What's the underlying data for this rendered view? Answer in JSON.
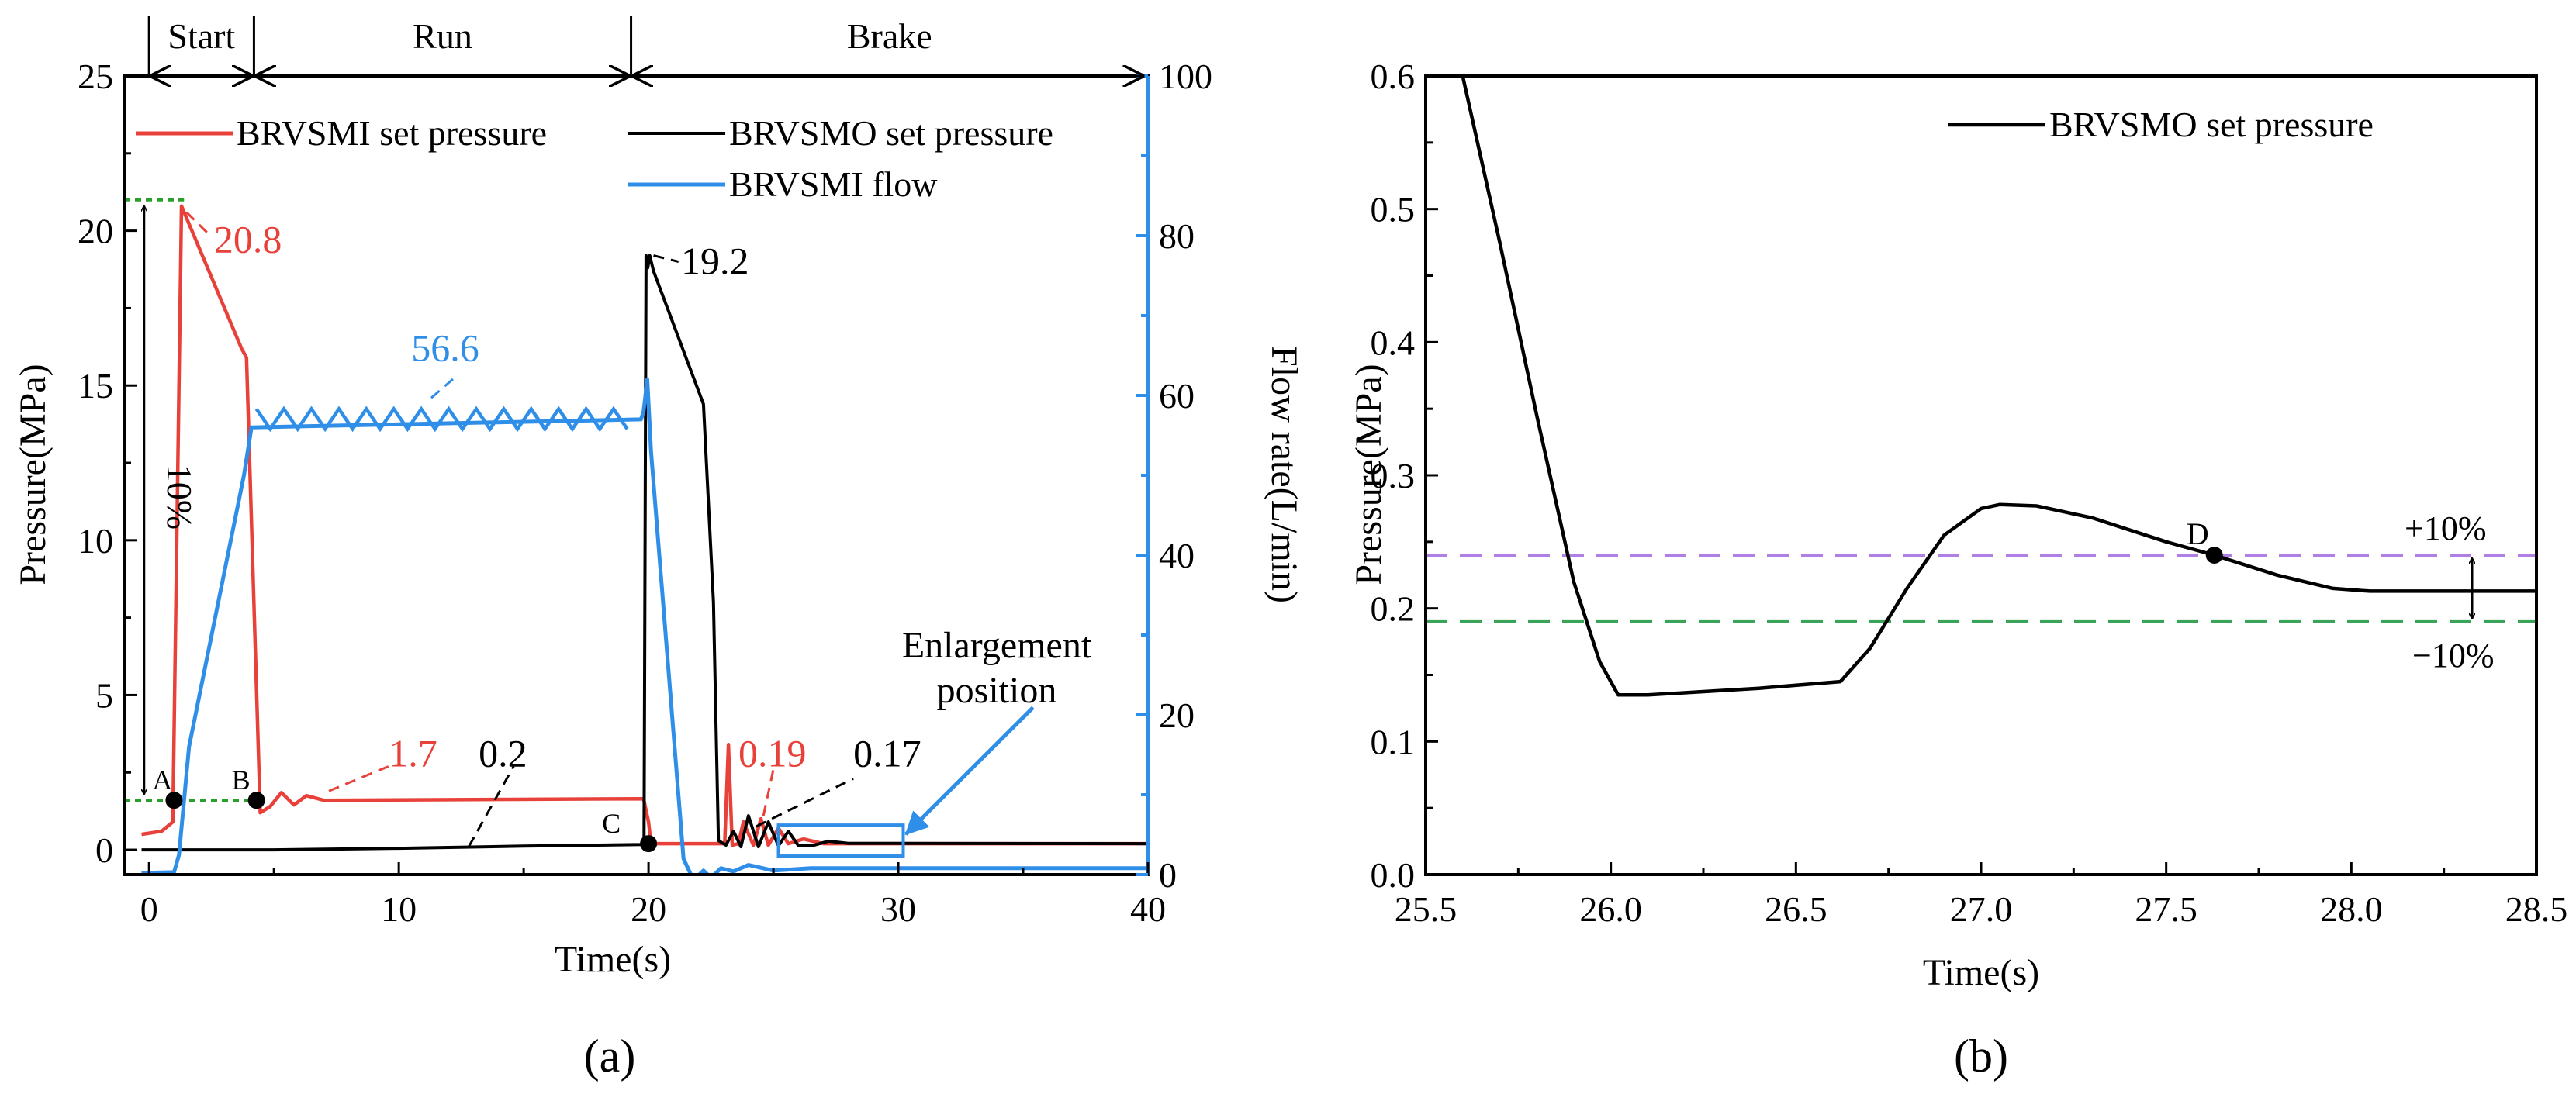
{
  "chart_data": [
    {
      "panel_label": "(a)",
      "type": "line",
      "title": "",
      "xlabel": "Time(s)",
      "ylabel": "Pressure(MPa)",
      "ylabel_right": "Flow rate(L/min)",
      "xlim": [
        -1,
        40
      ],
      "ylim": [
        -0.8,
        25
      ],
      "ylim_right": [
        0,
        100
      ],
      "x_ticks": [
        0,
        10,
        20,
        30,
        40
      ],
      "y_ticks": [
        0,
        5,
        10,
        15,
        20,
        25
      ],
      "y_ticks_right": [
        0,
        20,
        40,
        60,
        80,
        100
      ],
      "colors": {
        "red": "#e8413a",
        "black": "#000000",
        "blue": "#2f8fe8",
        "green": "#2aa02a"
      },
      "phases": [
        {
          "label": "Start",
          "from": 0,
          "to": 4.2
        },
        {
          "label": "Run",
          "from": 4.2,
          "to": 19.3
        },
        {
          "label": "Brake",
          "from": 19.3,
          "to": 40
        }
      ],
      "legend": [
        "BRVSMI set pressure",
        "BRVSMO set pressure",
        "BRVSMI flow"
      ],
      "series": [
        {
          "name": "BRVSMI set pressure",
          "axis": "left",
          "color": "#e8413a",
          "x": [
            -0.3,
            0.5,
            0.95,
            1.3,
            3.7,
            3.9,
            4.45,
            4.85,
            5.3,
            5.8,
            6.3,
            7,
            19.8,
            20,
            20.1,
            22.7,
            23.05,
            23.2,
            23.35,
            23.6,
            23.8,
            24.2,
            24.5,
            24.8,
            25.2,
            25.6,
            26.2,
            27,
            40
          ],
          "y": [
            0.5,
            0.6,
            0.9,
            20.8,
            16.2,
            15.9,
            1.2,
            1.4,
            1.85,
            1.45,
            1.75,
            1.6,
            1.65,
            0.9,
            0.2,
            0.2,
            0.2,
            3.4,
            0.15,
            0.2,
            0.9,
            0.15,
            1.0,
            0.15,
            0.7,
            0.2,
            0.35,
            0.2,
            0.2
          ]
        },
        {
          "name": "BRVSMO set pressure",
          "axis": "left",
          "color": "#000000",
          "x": [
            -0.3,
            5,
            10,
            15,
            19.7,
            19.82,
            19.9,
            19.97,
            20.05,
            20.2,
            22.2,
            22.6,
            22.8,
            23.1,
            23.4,
            23.7,
            24.0,
            24.4,
            24.8,
            25.2,
            25.6,
            26,
            26.6,
            27.2,
            28,
            40
          ],
          "y": [
            0,
            0,
            0.05,
            0.12,
            0.17,
            0.3,
            19.2,
            18.8,
            19.2,
            18.7,
            14.4,
            8.0,
            0.3,
            0.15,
            0.6,
            0.1,
            1.1,
            0.1,
            0.9,
            0.13,
            0.6,
            0.135,
            0.145,
            0.28,
            0.21,
            0.2
          ]
        },
        {
          "name": "BRVSMI flow",
          "axis": "right",
          "color": "#2f8fe8",
          "x": [
            -0.3,
            1,
            1.2,
            1.6,
            3.8,
            4.1,
            19.7,
            19.8,
            19.95,
            20.1,
            21.4,
            21.8,
            22.2,
            22.5,
            22.9,
            23.4,
            24.0,
            25.0,
            26.5,
            40
          ],
          "y": [
            0.2,
            0.3,
            2.5,
            16,
            50,
            56,
            57,
            58,
            62,
            53,
            2,
            -0.7,
            0.5,
            -0.4,
            0.8,
            0.4,
            1.2,
            0.5,
            0.8,
            0.8
          ]
        }
      ],
      "annotations": {
        "peak_red": "20.8",
        "peak_black": "19.2",
        "flow_plateau": "56.6",
        "red_steady": "1.7",
        "black_steady": "0.2",
        "red_brake": "0.19",
        "black_brake": "0.17",
        "percent_label": "10%",
        "enlargement": [
          "Enlargement",
          "position"
        ],
        "points": [
          {
            "label": "A",
            "x": 1.0,
            "y": 1.6
          },
          {
            "label": "B",
            "x": 4.3,
            "y": 1.6
          },
          {
            "label": "C",
            "x": 20.0,
            "y": 0.2
          }
        ],
        "enlargement_box": {
          "x0": 25.2,
          "x1": 30.2,
          "y0": -0.2,
          "y1": 0.8
        }
      }
    },
    {
      "panel_label": "(b)",
      "type": "line",
      "title": "",
      "xlabel": "Time(s)",
      "ylabel": "Pressure(MPa)",
      "xlim": [
        25.5,
        28.5
      ],
      "ylim": [
        0.0,
        0.6
      ],
      "x_ticks": [
        "25.5",
        "26.0",
        "26.5",
        "27.0",
        "27.5",
        "28.0",
        "28.5"
      ],
      "y_ticks": [
        "0.0",
        "0.1",
        "0.2",
        "0.3",
        "0.4",
        "0.5",
        "0.6"
      ],
      "legend": [
        "BRVSMO set pressure"
      ],
      "series": [
        {
          "name": "BRVSMO set pressure",
          "color": "#000000",
          "x": [
            25.6,
            25.7,
            25.8,
            25.9,
            25.97,
            26.02,
            26.1,
            26.4,
            26.62,
            26.7,
            26.8,
            26.9,
            27.0,
            27.05,
            27.15,
            27.3,
            27.5,
            27.63,
            27.8,
            27.95,
            28.05,
            28.5
          ],
          "y": [
            0.6,
            0.475,
            0.345,
            0.22,
            0.16,
            0.135,
            0.135,
            0.14,
            0.145,
            0.17,
            0.215,
            0.255,
            0.275,
            0.278,
            0.277,
            0.268,
            0.25,
            0.24,
            0.225,
            0.215,
            0.213,
            0.213
          ]
        }
      ],
      "bands": [
        {
          "label": "+10%",
          "y": 0.24,
          "color": "#b07fe6"
        },
        {
          "label": "−10%",
          "y": 0.19,
          "color": "#3aa35a"
        }
      ],
      "points": [
        {
          "label": "D",
          "x": 27.63,
          "y": 0.24
        }
      ]
    }
  ]
}
